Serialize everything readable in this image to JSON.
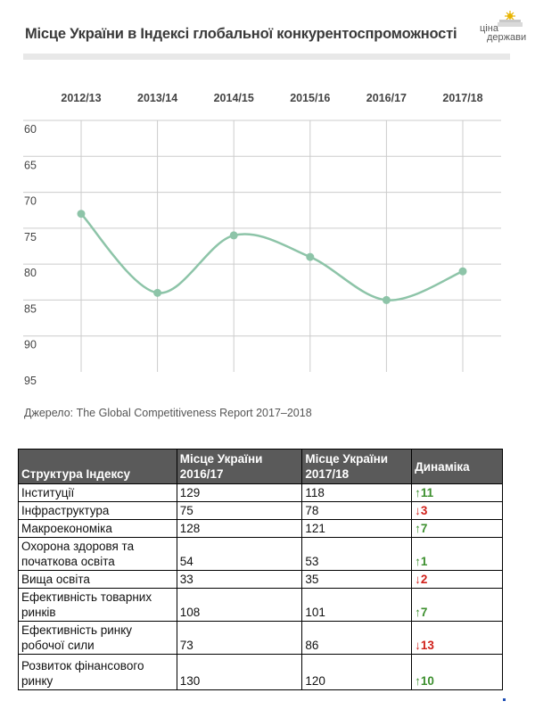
{
  "header": {
    "title": "Місце України в Індексі глобальної конкурентоспроможності",
    "logo_line1": "ціна",
    "logo_line2": "держави"
  },
  "colors": {
    "line": "#8dc4a8",
    "grid": "#cccccc",
    "up": "#3c8f2e",
    "down": "#d0211b",
    "table_header": "#5a5a5a"
  },
  "chart_data": {
    "type": "line",
    "categories": [
      "2012/13",
      "2013/14",
      "2014/15",
      "2015/16",
      "2016/17",
      "2017/18"
    ],
    "series": [
      {
        "values": [
          73,
          84,
          76,
          79,
          85,
          81
        ]
      }
    ],
    "y_ticks": [
      "60",
      "65",
      "70",
      "75",
      "80",
      "85",
      "90",
      "95"
    ],
    "ylim": [
      60,
      95
    ],
    "y_inverted": true,
    "x_axis_position": "top",
    "grid": true,
    "title": ""
  },
  "source": "Джерело: The Global Competitiveness Report 2017–2018",
  "table": {
    "headers": [
      "Структура Індексу",
      "Місце України 2016/17",
      "Місце України 2017/18",
      "Динаміка"
    ],
    "rows": [
      {
        "name": "Інституції",
        "v1": "129",
        "v2": "118",
        "dyn": "↑11",
        "dir": "up"
      },
      {
        "name": "Інфраструктура",
        "v1": "75",
        "v2": "78",
        "dyn": "↓3",
        "dir": "down"
      },
      {
        "name": "Макроекономіка",
        "v1": "128",
        "v2": "121",
        "dyn": "↑7",
        "dir": "up"
      },
      {
        "name": "Охорона здоровя та початкова освіта",
        "v1": "54",
        "v2": "53",
        "dyn": "↑1",
        "dir": "up"
      },
      {
        "name": "Вища освіта",
        "v1": "33",
        "v2": "35",
        "dyn": "↓2",
        "dir": "down"
      },
      {
        "name": "Ефективність товарних ринків",
        "v1": "108",
        "v2": "101",
        "dyn": "↑7",
        "dir": "up"
      },
      {
        "name": "Ефективність ринку робочої сили",
        "v1": "73",
        "v2": "86",
        "dyn": "↓13",
        "dir": "down"
      },
      {
        "name": "Розвиток фінансового ринку",
        "v1": "130",
        "v2": "120",
        "dyn": "↑10",
        "dir": "up"
      }
    ]
  }
}
